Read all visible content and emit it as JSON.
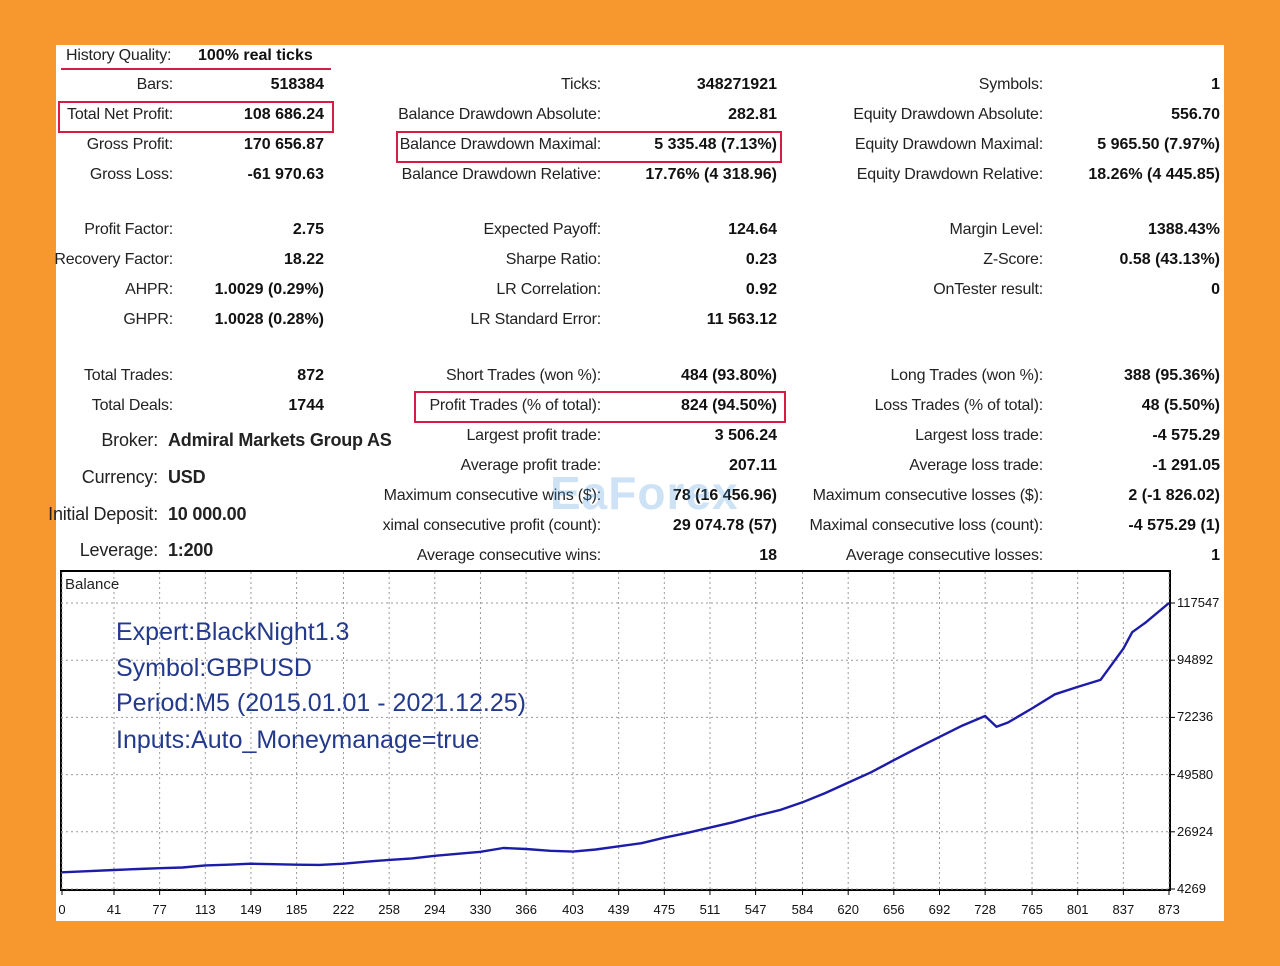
{
  "watermark": "EaForex",
  "header": {
    "quality_label": "History Quality:",
    "quality_value": "100% real ticks"
  },
  "stats": [
    {
      "label": "Bars:",
      "value": "518384",
      "col": 0,
      "row": 1
    },
    {
      "label": "Total Net Profit:",
      "value": "108 686.24",
      "col": 0,
      "row": 2
    },
    {
      "label": "Gross Profit:",
      "value": "170 656.87",
      "col": 0,
      "row": 3
    },
    {
      "label": "Gross Loss:",
      "value": "-61 970.63",
      "col": 0,
      "row": 4
    },
    {
      "label": "Profit Factor:",
      "value": "2.75",
      "col": 0,
      "row": 5
    },
    {
      "label": "Recovery Factor:",
      "value": "18.22",
      "col": 0,
      "row": 6
    },
    {
      "label": "AHPR:",
      "value": "1.0029 (0.29%)",
      "col": 0,
      "row": 7
    },
    {
      "label": "GHPR:",
      "value": "1.0028 (0.28%)",
      "col": 0,
      "row": 8
    },
    {
      "label": "Total Trades:",
      "value": "872",
      "col": 0,
      "row": 9
    },
    {
      "label": "Total Deals:",
      "value": "1744",
      "col": 0,
      "row": 10
    },
    {
      "label": "Ticks:",
      "value": "348271921",
      "col": 1,
      "row": 1
    },
    {
      "label": "Balance Drawdown Absolute:",
      "value": "282.81",
      "col": 1,
      "row": 2
    },
    {
      "label": "Balance Drawdown Maximal:",
      "value": "5 335.48 (7.13%)",
      "col": 1,
      "row": 3
    },
    {
      "label": "Balance Drawdown Relative:",
      "value": "17.76% (4 318.96)",
      "col": 1,
      "row": 4
    },
    {
      "label": "Expected Payoff:",
      "value": "124.64",
      "col": 1,
      "row": 5
    },
    {
      "label": "Sharpe Ratio:",
      "value": "0.23",
      "col": 1,
      "row": 6
    },
    {
      "label": "LR Correlation:",
      "value": "0.92",
      "col": 1,
      "row": 7
    },
    {
      "label": "LR Standard Error:",
      "value": "11 563.12",
      "col": 1,
      "row": 8
    },
    {
      "label": "Short Trades (won %):",
      "value": "484 (93.80%)",
      "col": 1,
      "row": 9
    },
    {
      "label": "Profit Trades (% of total):",
      "value": "824 (94.50%)",
      "col": 1,
      "row": 10
    },
    {
      "label": "Largest profit trade:",
      "value": "3 506.24",
      "col": 1,
      "row": 11
    },
    {
      "label": "Average profit trade:",
      "value": "207.11",
      "col": 1,
      "row": 12
    },
    {
      "label": "Maximum consecutive wins ($):",
      "value": "78 (16 456.96)",
      "col": 1,
      "row": 13
    },
    {
      "label": "ximal consecutive profit (count):",
      "value": "29 074.78 (57)",
      "col": 1,
      "row": 14
    },
    {
      "label": "Average consecutive wins:",
      "value": "18",
      "col": 1,
      "row": 15
    },
    {
      "label": "Symbols:",
      "value": "1",
      "col": 2,
      "row": 1
    },
    {
      "label": "Equity Drawdown Absolute:",
      "value": "556.70",
      "col": 2,
      "row": 2
    },
    {
      "label": "Equity Drawdown Maximal:",
      "value": "5 965.50 (7.97%)",
      "col": 2,
      "row": 3
    },
    {
      "label": "Equity Drawdown Relative:",
      "value": "18.26% (4 445.85)",
      "col": 2,
      "row": 4
    },
    {
      "label": "Margin Level:",
      "value": "1388.43%",
      "col": 2,
      "row": 5
    },
    {
      "label": "Z-Score:",
      "value": "0.58 (43.13%)",
      "col": 2,
      "row": 6
    },
    {
      "label": "OnTester result:",
      "value": "0",
      "col": 2,
      "row": 7
    },
    {
      "label": "Long Trades (won %):",
      "value": "388 (95.36%)",
      "col": 2,
      "row": 9
    },
    {
      "label": "Loss Trades (% of total):",
      "value": "48 (5.50%)",
      "col": 2,
      "row": 10
    },
    {
      "label": "Largest loss trade:",
      "value": "-4 575.29",
      "col": 2,
      "row": 11
    },
    {
      "label": "Average loss trade:",
      "value": "-1 291.05",
      "col": 2,
      "row": 12
    },
    {
      "label": "Maximum consecutive losses ($):",
      "value": "2 (-1 826.02)",
      "col": 2,
      "row": 13
    },
    {
      "label": "Maximal consecutive loss (count):",
      "value": "-4 575.29 (1)",
      "col": 2,
      "row": 14
    },
    {
      "label": "Average consecutive losses:",
      "value": "1",
      "col": 2,
      "row": 15
    }
  ],
  "account": [
    {
      "label": "Broker:",
      "value": "Admiral Markets Group AS"
    },
    {
      "label": "Currency:",
      "value": "USD"
    },
    {
      "label": "Initial Deposit:",
      "value": "10 000.00"
    },
    {
      "label": "Leverage:",
      "value": "1:200"
    }
  ],
  "info_lines": [
    "Expert:BlackNight1.3",
    "Symbol:GBPUSD",
    "Period:M5 (2015.01.01 - 2021.12.25)",
    "Inputs:Auto_Moneymanage=true"
  ],
  "chart_data": {
    "type": "line",
    "title": "Balance",
    "series": [
      {
        "color": "#1C1CA8",
        "x": [
          0,
          20,
          41,
          60,
          77,
          95,
          113,
          131,
          149,
          167,
          185,
          203,
          222,
          240,
          258,
          276,
          294,
          312,
          330,
          348,
          366,
          385,
          403,
          421,
          439,
          457,
          475,
          493,
          511,
          529,
          547,
          566,
          584,
          602,
          620,
          638,
          656,
          674,
          692,
          710,
          728,
          737,
          746,
          765,
          783,
          801,
          819,
          837,
          844,
          855,
          873
        ],
        "y": [
          10900,
          11300,
          11800,
          12200,
          12500,
          12800,
          13600,
          13900,
          14300,
          14100,
          13900,
          13800,
          14300,
          15100,
          15800,
          16400,
          17400,
          18200,
          19000,
          20500,
          20100,
          19400,
          19100,
          19900,
          21200,
          22400,
          24600,
          26500,
          28600,
          30700,
          33200,
          35500,
          38600,
          42300,
          46400,
          50500,
          55300,
          60000,
          64500,
          69000,
          72800,
          68500,
          70200,
          75800,
          81400,
          84300,
          87100,
          99500,
          106000,
          110000,
          117547
        ]
      }
    ],
    "yticks": [
      4269,
      26924,
      49580,
      72236,
      94892,
      117547
    ],
    "xticks": [
      0,
      41,
      77,
      113,
      149,
      185,
      222,
      258,
      294,
      330,
      366,
      403,
      439,
      475,
      511,
      547,
      584,
      620,
      656,
      692,
      728,
      765,
      801,
      837,
      873
    ],
    "xlim": [
      0,
      873
    ],
    "ylim": [
      4269,
      117547
    ],
    "grid": true
  }
}
